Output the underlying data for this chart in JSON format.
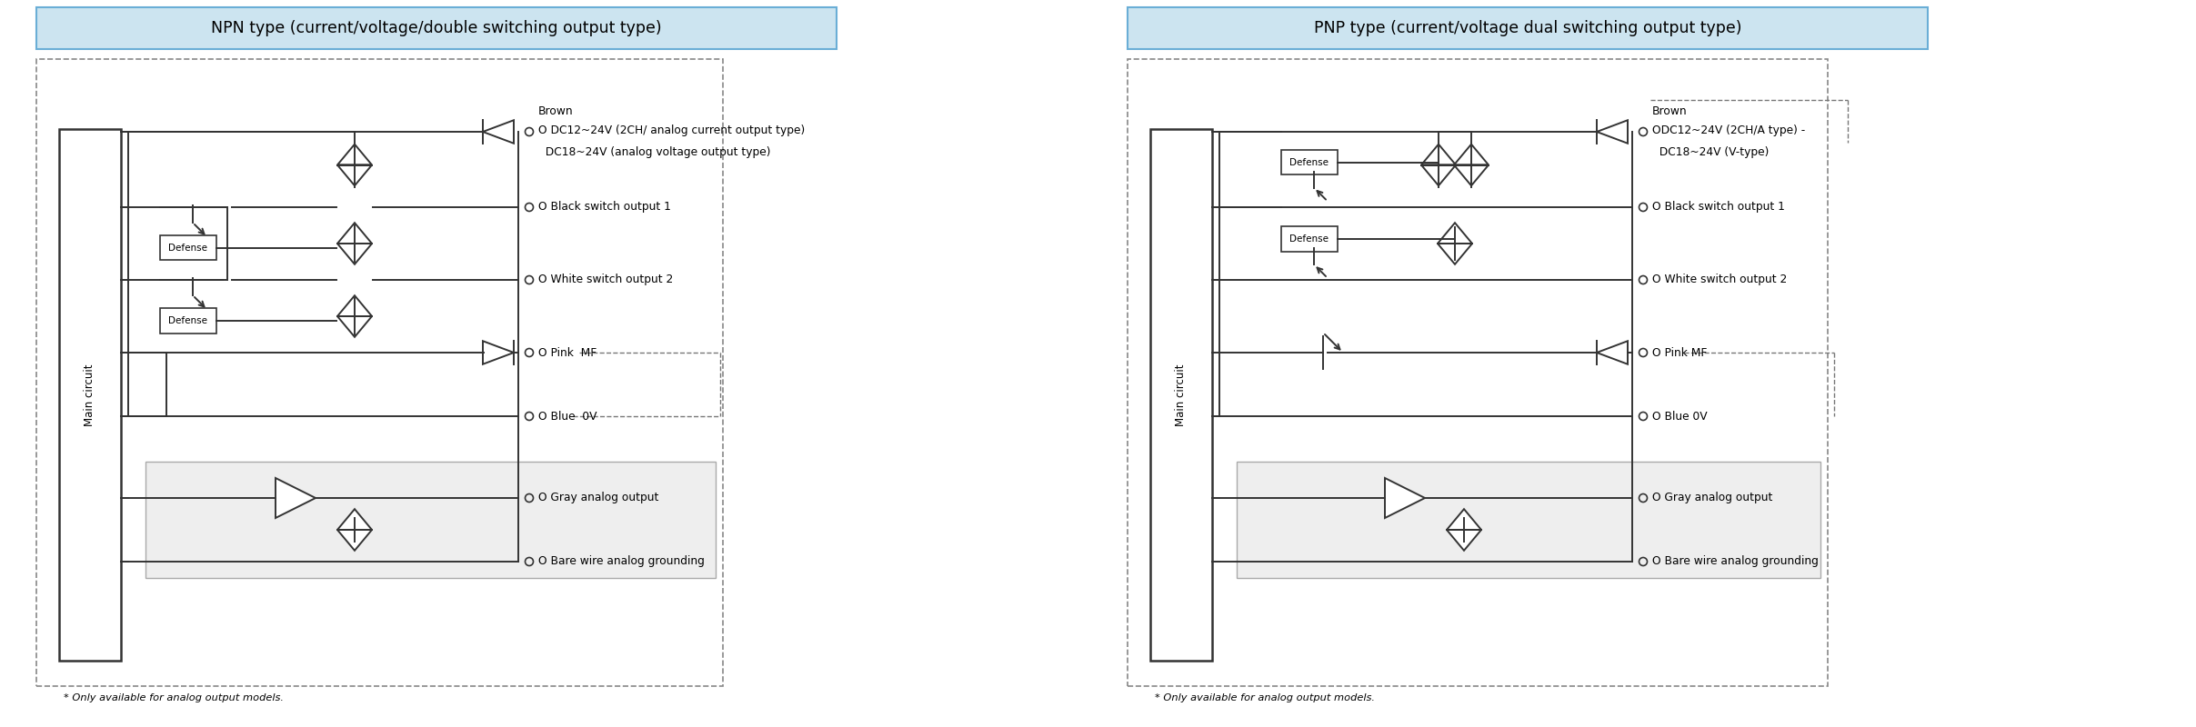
{
  "fig_width": 24.15,
  "fig_height": 8.0,
  "dpi": 100,
  "bg_color": "#ffffff",
  "title_npn": "NPN type (current/voltage/double switching output type)",
  "title_pnp": "PNP type (current/voltage dual switching output type)",
  "title_bg": "#cce4f0",
  "title_border": "#6aaed6",
  "note": "* Only available for analog output models.",
  "npn": {
    "brown_top": "Brown",
    "brown_sub1": "O DC12~24V (2CH/ analog current output type)",
    "brown_sub2": "  DC18~24V (analog voltage output type)",
    "black": "O Black switch output 1",
    "white": "O White switch output 2",
    "pink": "O Pink  MF",
    "blue": "O Blue  0V",
    "gray": "O Gray analog output",
    "bare": "O Bare wire analog grounding"
  },
  "pnp": {
    "brown_top": "Brown",
    "brown_sub1": "ODC12~24V (2CH/A type) -",
    "brown_sub2": "  DC18~24V (V-type)",
    "black": "O Black switch output 1",
    "white": "O White switch output 2",
    "pink": "O Pink MF",
    "blue": "O Blue 0V",
    "gray": "O Gray analog output",
    "bare": "O Bare wire analog grounding"
  }
}
